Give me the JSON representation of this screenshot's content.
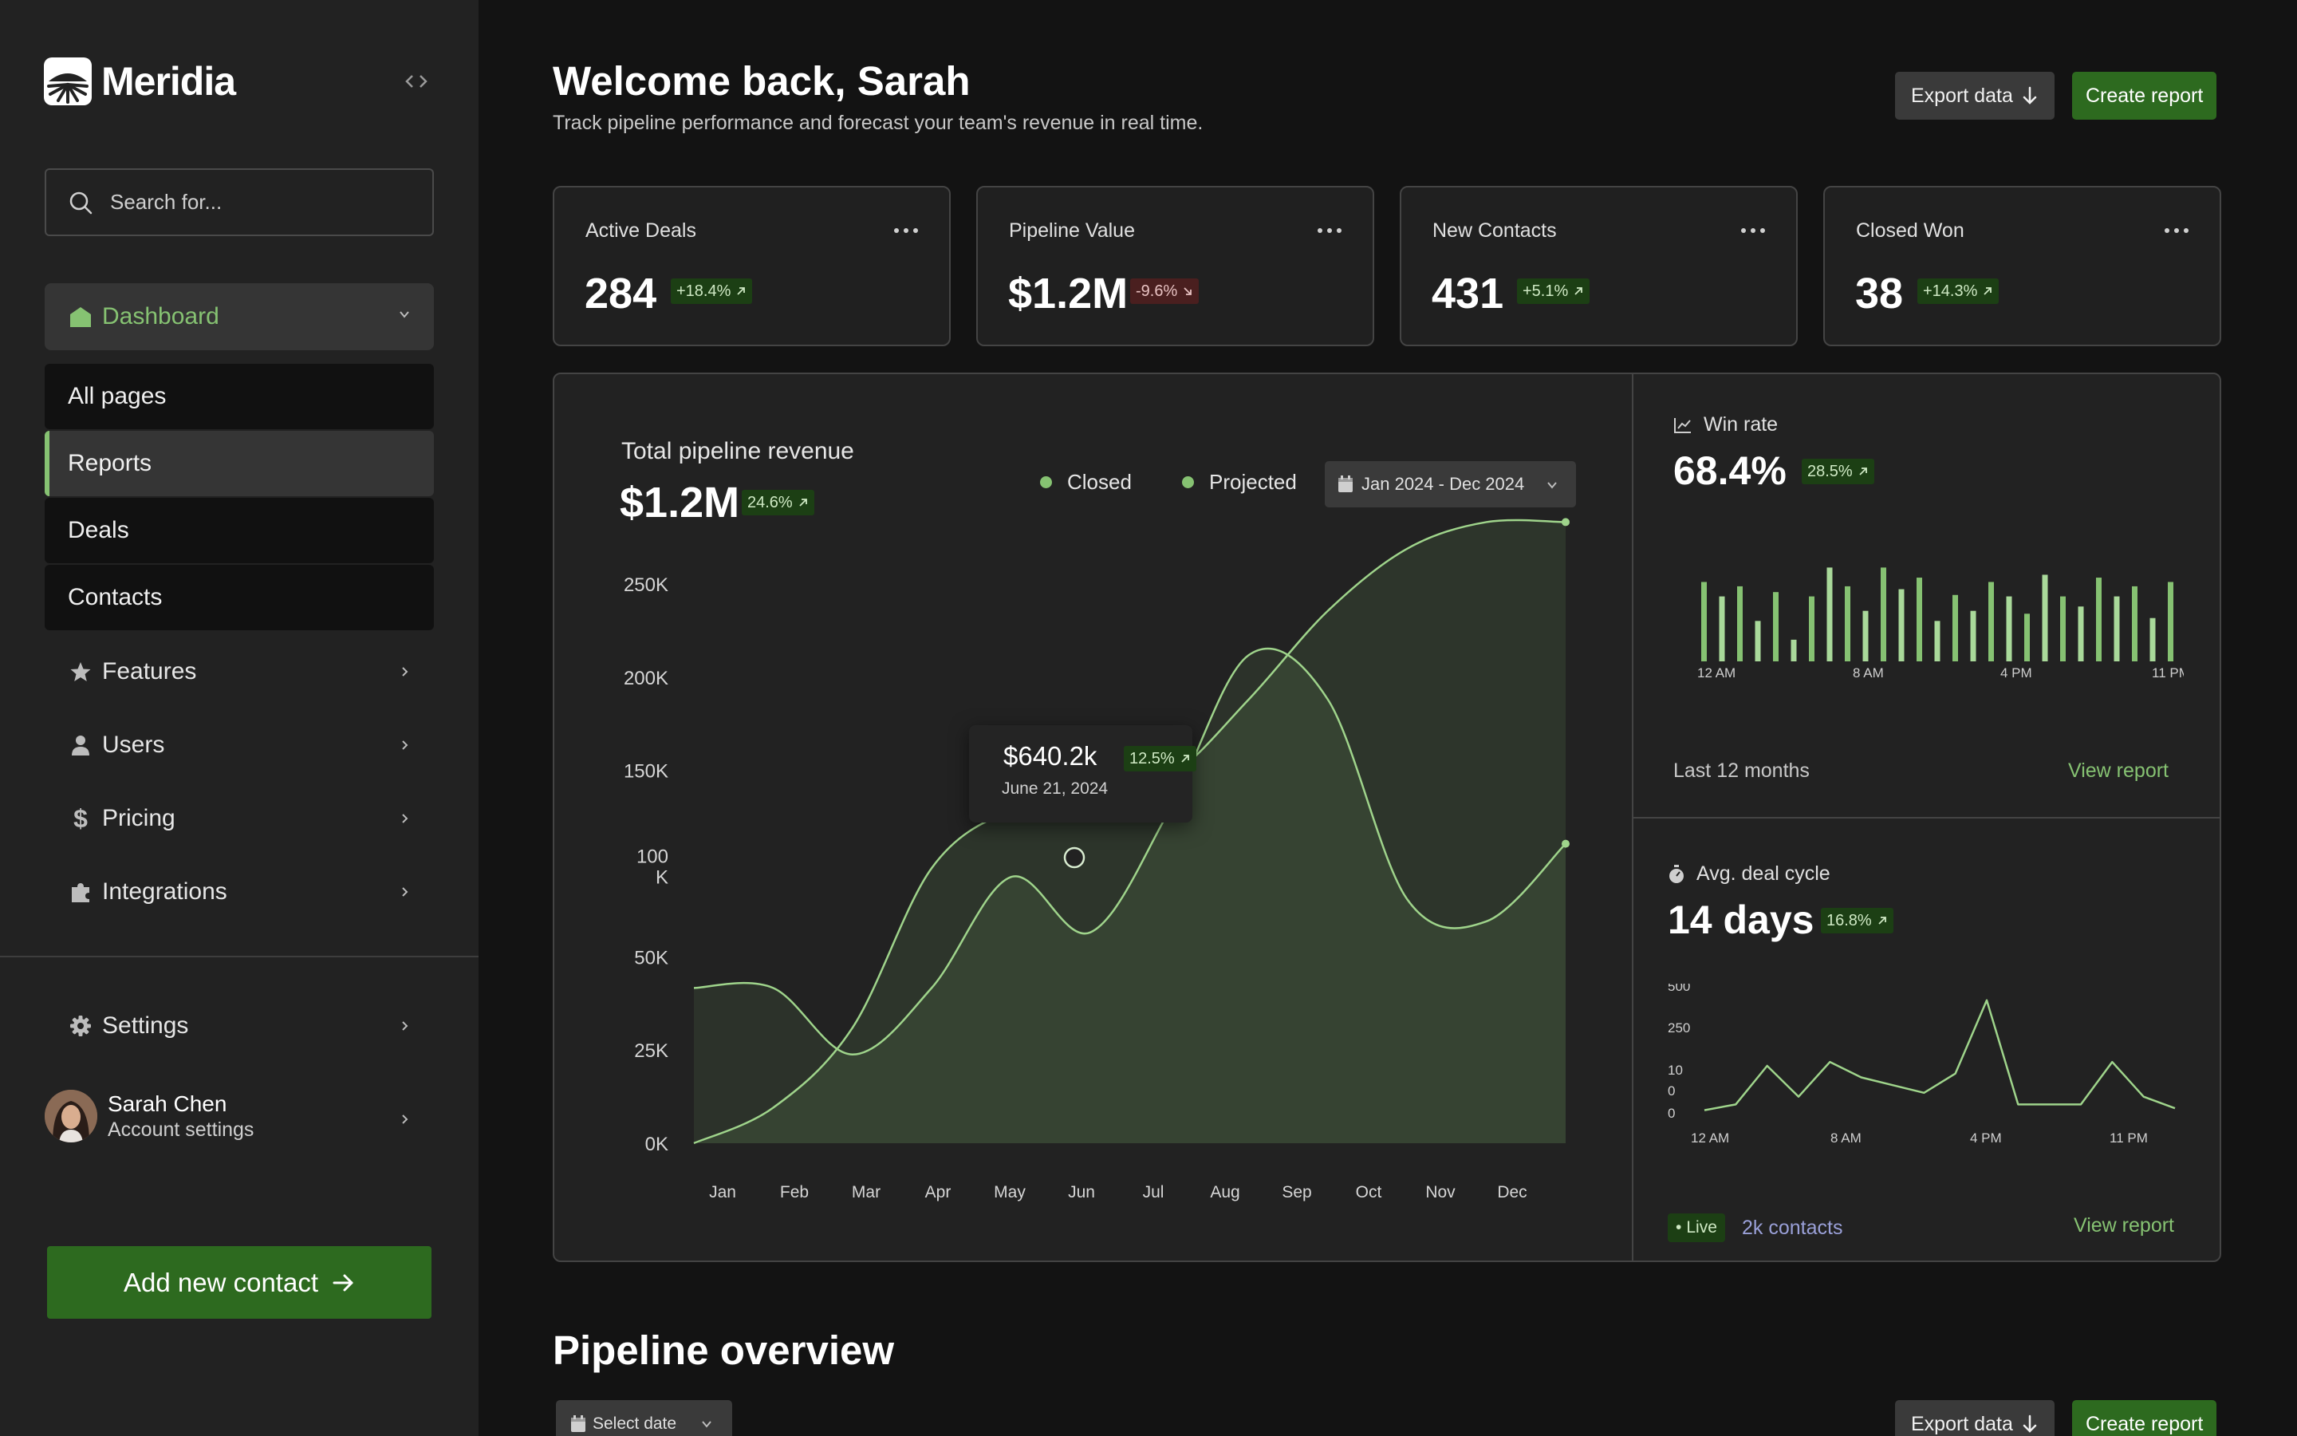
{
  "app": {
    "name": "Meridia"
  },
  "sidebar": {
    "search_placeholder": "Search for...",
    "dashboard_label": "Dashboard",
    "sub_items": [
      "All pages",
      "Reports",
      "Deals",
      "Contacts"
    ],
    "active_sub_item": "Reports",
    "items": [
      {
        "label": "Features",
        "icon": "star-icon"
      },
      {
        "label": "Users",
        "icon": "user-icon"
      },
      {
        "label": "Pricing",
        "icon": "dollar-icon"
      },
      {
        "label": "Integrations",
        "icon": "puzzle-icon"
      }
    ],
    "settings_label": "Settings",
    "user": {
      "name": "Sarah Chen",
      "subtitle": "Account settings"
    },
    "add_contact_label": "Add new contact"
  },
  "header": {
    "title": "Welcome back, Sarah",
    "subtitle": "Track pipeline performance and forecast your team's revenue in real time.",
    "export_label": "Export data",
    "create_label": "Create report"
  },
  "stats": [
    {
      "label": "Active Deals",
      "value": "284",
      "change": "+18.4%",
      "direction": "up"
    },
    {
      "label": "Pipeline Value",
      "value": "$1.2M",
      "change": "-9.6%",
      "direction": "down"
    },
    {
      "label": "New Contacts",
      "value": "431",
      "change": "+5.1%",
      "direction": "up"
    },
    {
      "label": "Closed Won",
      "value": "38",
      "change": "+14.3%",
      "direction": "up"
    }
  ],
  "revenue": {
    "title": "Total pipeline revenue",
    "total": "$1.2M",
    "change": "24.6%",
    "legend": [
      "Closed",
      "Projected"
    ],
    "date_range": "Jan 2024 - Dec 2024",
    "tooltip": {
      "value": "$640.2k",
      "change": "12.5%",
      "date": "June 21, 2024"
    }
  },
  "win_rate": {
    "title": "Win rate",
    "value": "68.4%",
    "change": "28.5%",
    "footer": "Last 12 months",
    "link": "View report"
  },
  "deal_cycle": {
    "title": "Avg. deal cycle",
    "value": "14 days",
    "change": "16.8%",
    "live": "Live",
    "contacts": "2k contacts",
    "link": "View report"
  },
  "pipeline": {
    "title": "Pipeline overview",
    "select_date": "Select date",
    "export_label": "Export data",
    "create_label": "Create report"
  },
  "colors": {
    "accent": "#86c272",
    "button_green": "#2d6a1f",
    "background": "#131313",
    "panel": "#222222"
  },
  "chart_data": [
    {
      "type": "area",
      "categories": [
        "Jan",
        "Feb",
        "Mar",
        "Apr",
        "May",
        "Jun",
        "Jul",
        "Aug",
        "Sep",
        "Oct",
        "Nov",
        "Dec"
      ],
      "y_ticks": [
        "0K",
        "25K",
        "50K",
        "100 K",
        "150K",
        "200K",
        "250K"
      ],
      "series": [
        {
          "name": "Closed",
          "values": [
            0,
            16,
            52,
            124,
            150,
            155,
            165,
            200,
            240,
            268,
            280,
            280
          ]
        },
        {
          "name": "Projected",
          "values": [
            70,
            70,
            40,
            70,
            120,
            95,
            150,
            220,
            200,
            110,
            100,
            135
          ]
        }
      ]
    },
    {
      "type": "bar",
      "x_ticks": [
        "12 AM",
        "8 AM",
        "4 PM",
        "11 PM"
      ],
      "values": [
        55,
        45,
        52,
        28,
        48,
        15,
        45,
        65,
        52,
        35,
        65,
        50,
        58,
        28,
        46,
        35,
        55,
        45,
        33,
        60,
        45,
        38,
        58,
        45,
        52,
        30,
        55,
        47,
        60
      ]
    },
    {
      "type": "line",
      "x_ticks": [
        "12 AM",
        "8 AM",
        "4 PM",
        "11 PM"
      ],
      "y_ticks": [
        "500",
        "250",
        "10",
        "0",
        "0"
      ],
      "values": [
        5,
        20,
        120,
        40,
        130,
        90,
        70,
        50,
        100,
        290,
        20,
        20,
        20,
        130,
        40,
        10
      ]
    }
  ]
}
